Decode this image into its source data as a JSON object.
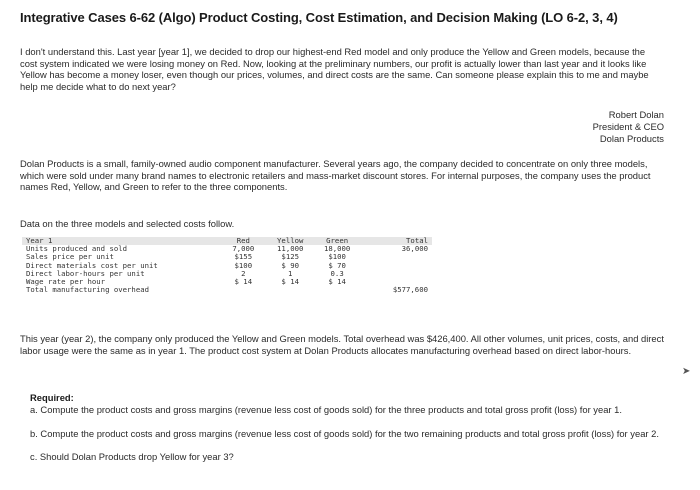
{
  "title": "Integrative Cases 6-62 (Algo) Product Costing, Cost Estimation, and Decision Making (LO 6-2, 3, 4)",
  "intro": "I don't understand this. Last year [year 1], we decided to drop our highest-end Red model and only produce the Yellow and Green models, because the cost system indicated we were losing money on Red. Now, looking at the preliminary numbers, our profit is actually lower than last year and it looks like Yellow has become a money loser, even though our prices, volumes, and direct costs are the same. Can someone please explain this to me and maybe help me decide what to do next year?",
  "signature": {
    "name": "Robert Dolan",
    "role": "President & CEO",
    "company": "Dolan Products"
  },
  "background": "Dolan Products is a small, family-owned audio component manufacturer. Several years ago, the company decided to concentrate on only three models, which were sold under many brand names to electronic retailers and mass-market discount stores. For internal purposes, the company uses the product names Red, Yellow, and Green to refer to the three components.",
  "data_intro": "Data on the three models and selected costs follow.",
  "table": {
    "header": [
      "Year 1",
      "Red",
      "Yellow",
      "Green",
      "Total"
    ],
    "rows": [
      [
        "Units produced and sold",
        "7,000",
        "11,000",
        "18,000",
        "36,000"
      ],
      [
        "Sales price per unit",
        "$155",
        "$125",
        "$100",
        ""
      ],
      [
        "Direct materials cost per unit",
        "$100",
        "$ 90",
        "$ 70",
        ""
      ],
      [
        "Direct labor-hours per unit",
        "2",
        "1",
        "0.3",
        ""
      ],
      [
        "Wage rate per hour",
        "$ 14",
        "$ 14",
        "$ 14",
        ""
      ],
      [
        "Total manufacturing overhead",
        "",
        "",
        "",
        "$577,600"
      ]
    ]
  },
  "year2": "This year (year 2), the company only produced the Yellow and Green models. Total overhead was $426,400. All other volumes, unit prices, costs, and direct labor usage were the same as in year 1. The product cost system at Dolan Products allocates manufacturing overhead based on direct labor-hours.",
  "required": {
    "heading": "Required:",
    "a": "a. Compute the product costs and gross margins (revenue less cost of goods sold) for the three products and total gross profit (loss) for year 1.",
    "b": "b. Compute the product costs and gross margins (revenue less cost of goods sold) for the two remaining products and total gross profit (loss) for year 2.",
    "c": "c. Should Dolan Products drop Yellow for year 3?"
  }
}
